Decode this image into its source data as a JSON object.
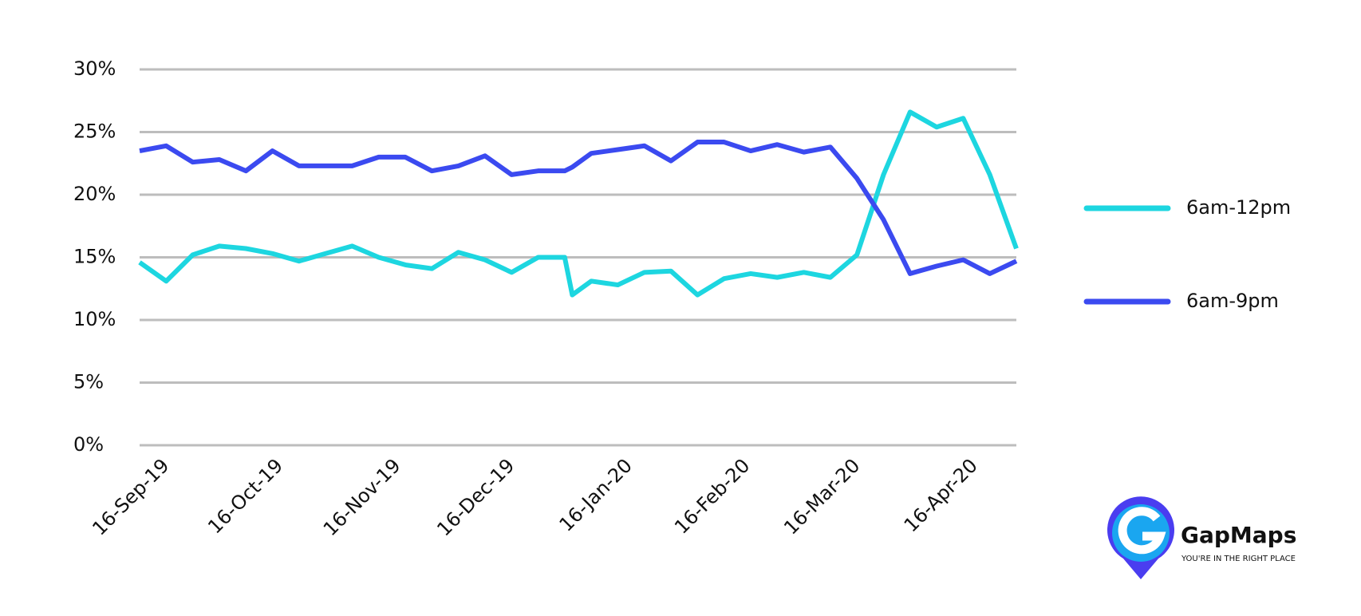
{
  "chart_data": {
    "type": "line",
    "x": [
      "9-Sep-19",
      "16-Sep-19",
      "23-Sep-19",
      "30-Sep-19",
      "7-Oct-19",
      "14-Oct-19",
      "21-Oct-19",
      "28-Oct-19",
      "4-Nov-19",
      "11-Nov-19",
      "18-Nov-19",
      "25-Nov-19",
      "2-Dec-19",
      "9-Dec-19",
      "16-Dec-19",
      "23-Dec-19",
      "30-Dec-19",
      "1-Jan-20",
      "6-Jan-20",
      "13-Jan-20",
      "20-Jan-20",
      "27-Jan-20",
      "3-Feb-20",
      "10-Feb-20",
      "17-Feb-20",
      "24-Feb-20",
      "2-Mar-20",
      "9-Mar-20",
      "16-Mar-20",
      "23-Mar-20",
      "30-Mar-20",
      "6-Apr-20",
      "13-Apr-20",
      "20-Apr-20",
      "27-Apr-20"
    ],
    "series": [
      {
        "name": "6am-12pm",
        "color": "#1dd6e0",
        "values": [
          14.6,
          13.1,
          15.2,
          15.9,
          15.7,
          15.3,
          14.7,
          15.3,
          15.9,
          15.0,
          14.4,
          14.1,
          15.4,
          14.8,
          13.8,
          15.0,
          15.0,
          12.0,
          13.1,
          12.8,
          13.8,
          13.9,
          12.0,
          13.3,
          13.7,
          13.4,
          13.8,
          13.4,
          15.2,
          21.6,
          26.6,
          25.4,
          26.1,
          21.6,
          15.7
        ]
      },
      {
        "name": "6am-9pm",
        "color": "#3b4af0",
        "values": [
          23.5,
          23.9,
          22.6,
          22.8,
          21.9,
          23.5,
          22.3,
          22.3,
          22.3,
          23.0,
          23.0,
          21.9,
          22.3,
          23.1,
          21.6,
          21.9,
          21.9,
          22.2,
          23.3,
          23.6,
          23.9,
          22.7,
          24.2,
          24.2,
          23.5,
          24.0,
          23.4,
          23.8,
          21.3,
          18.0,
          13.7,
          14.3,
          14.8,
          13.7,
          14.7
        ]
      }
    ],
    "xlim": [
      "9-Sep-19",
      "27-Apr-20"
    ],
    "xticks": [
      "16-Sep-19",
      "16-Oct-19",
      "16-Nov-19",
      "16-Dec-19",
      "16-Jan-20",
      "16-Feb-20",
      "16-Mar-20",
      "16-Apr-20"
    ],
    "ylim": [
      0,
      30
    ],
    "yticks": [
      {
        "value": 0,
        "label": "0%"
      },
      {
        "value": 5,
        "label": "5%"
      },
      {
        "value": 10,
        "label": "10%"
      },
      {
        "value": 15,
        "label": "15%"
      },
      {
        "value": 20,
        "label": "20%"
      },
      {
        "value": 25,
        "label": "25%"
      },
      {
        "value": 30,
        "label": "30%"
      }
    ],
    "grid": true,
    "legend": "right"
  },
  "logo": {
    "name": "GapMaps",
    "tagline": "YOU'RE IN THE RIGHT PLACE"
  }
}
